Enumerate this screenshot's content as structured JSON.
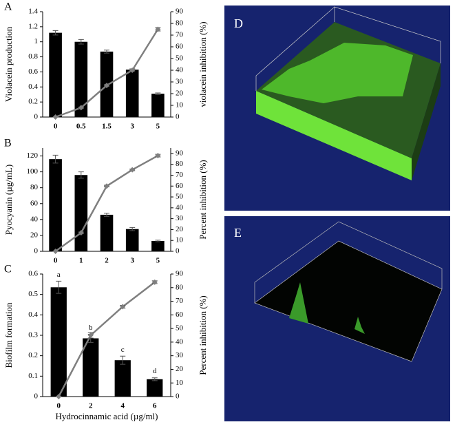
{
  "chart_data": [
    {
      "type": "bar-line",
      "panel": "A",
      "categories": [
        "0",
        "0.5",
        "1.5",
        "3",
        "5"
      ],
      "y_label": "Violacein production",
      "y2_label": "violacein inhibition (%)",
      "ylim": [
        0,
        1.4
      ],
      "yticks": [
        0,
        0.2,
        0.4,
        0.6,
        0.8,
        1,
        1.2,
        1.4
      ],
      "y2lim": [
        0,
        90
      ],
      "y2ticks": [
        0,
        10,
        20,
        30,
        40,
        50,
        60,
        70,
        80,
        90
      ],
      "series": [
        {
          "kind": "bar",
          "color": "#000000",
          "values": [
            1.12,
            1.0,
            0.87,
            0.63,
            0.31
          ],
          "errors": [
            0.03,
            0.03,
            0.02,
            0.01,
            0.01
          ]
        },
        {
          "kind": "line",
          "axis": "y2",
          "color": "#7f7f7f",
          "values": [
            0,
            8,
            27,
            40,
            75
          ],
          "errors": [
            0,
            0.6,
            0.8,
            1,
            1.5
          ]
        }
      ]
    },
    {
      "type": "bar-line",
      "panel": "B",
      "categories": [
        "0",
        "1",
        "2",
        "3",
        "5"
      ],
      "y_label": "Pyocyanin (µg/mL)",
      "y2_label": "Percent inhibition (%)",
      "ylim": [
        0,
        130
      ],
      "yticks": [
        0,
        20,
        40,
        60,
        80,
        100,
        120
      ],
      "y2lim": [
        0,
        95
      ],
      "y2ticks": [
        0,
        10,
        20,
        30,
        40,
        50,
        60,
        70,
        80,
        90
      ],
      "series": [
        {
          "kind": "bar",
          "color": "#000000",
          "values": [
            116,
            96,
            46,
            28,
            13
          ],
          "errors": [
            5,
            4,
            2,
            2,
            1
          ]
        },
        {
          "kind": "line",
          "axis": "y2",
          "color": "#7f7f7f",
          "values": [
            0,
            17,
            60,
            75,
            88
          ],
          "errors": [
            0,
            0.8,
            0.8,
            0.8,
            1.2
          ]
        }
      ]
    },
    {
      "type": "bar-line",
      "panel": "C",
      "categories": [
        "0",
        "2",
        "4",
        "6"
      ],
      "y_label": "Biofilm formation",
      "y2_label": "Percent inhibition (%)",
      "x_label": "Hydrocinnamic acid (µg/ml)",
      "ylim": [
        0,
        0.6
      ],
      "yticks": [
        0,
        0.1,
        0.2,
        0.3,
        0.4,
        0.5,
        0.6
      ],
      "y2lim": [
        0,
        90
      ],
      "y2ticks": [
        0,
        10,
        20,
        30,
        40,
        50,
        60,
        70,
        80,
        90
      ],
      "annotations": [
        "a",
        "b",
        "c",
        "d"
      ],
      "series": [
        {
          "kind": "bar",
          "color": "#000000",
          "values": [
            0.535,
            0.285,
            0.178,
            0.085
          ],
          "errors": [
            0.03,
            0.02,
            0.02,
            0.007
          ]
        },
        {
          "kind": "line",
          "axis": "y2",
          "color": "#7f7f7f",
          "values": [
            0,
            45,
            66,
            84
          ],
          "errors": [
            0,
            2,
            1,
            1
          ]
        }
      ]
    }
  ],
  "images": [
    {
      "label": "D"
    },
    {
      "label": "E"
    }
  ]
}
